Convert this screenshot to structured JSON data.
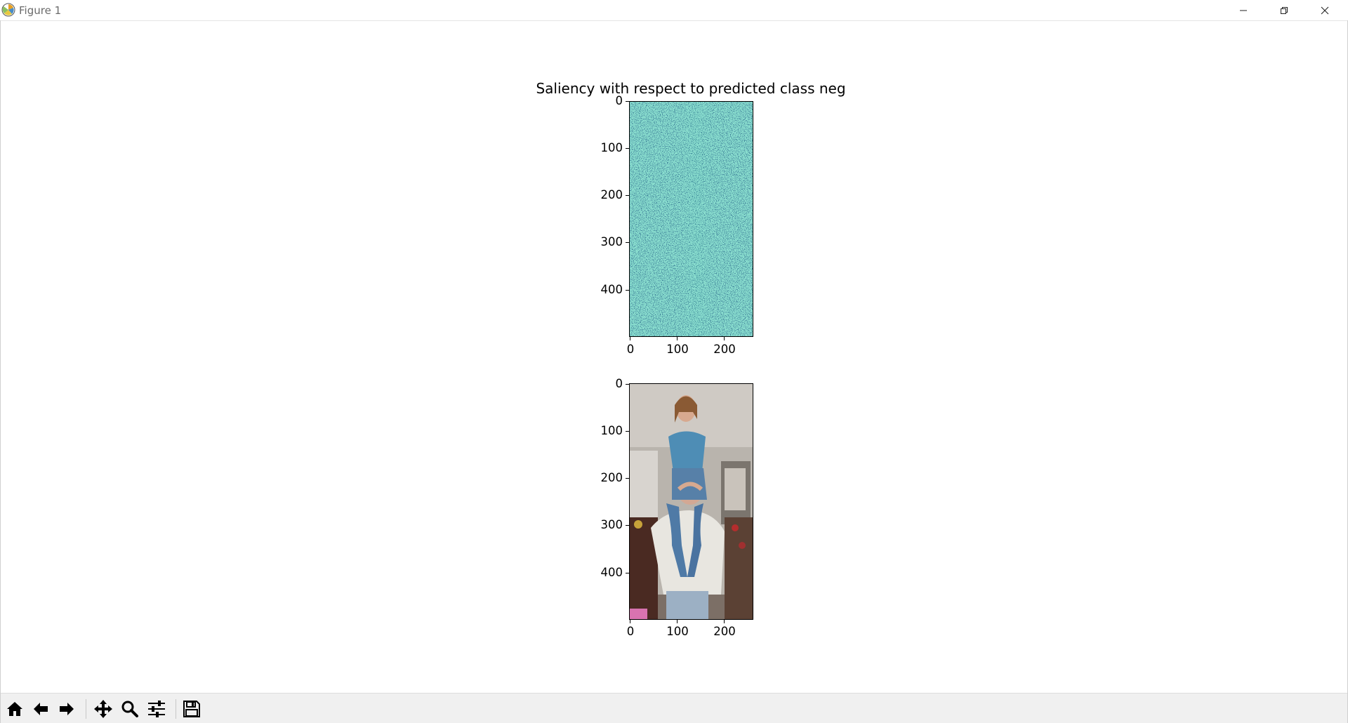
{
  "window": {
    "title": "Figure 1"
  },
  "figure": {
    "title": "Saliency with respect to predicted class neg"
  },
  "chart_data": [
    {
      "type": "image",
      "name": "saliency-map",
      "colormap": "viridis",
      "image_shape": [
        500,
        262
      ],
      "xlim": [
        0,
        262
      ],
      "ylim": [
        500,
        0
      ],
      "x_ticks": [
        "0",
        "100",
        "200"
      ],
      "y_ticks": [
        "0",
        "100",
        "200",
        "300",
        "400"
      ],
      "dominant_color": "#2f6e8e"
    },
    {
      "type": "image",
      "name": "input-photo",
      "image_shape": [
        500,
        262
      ],
      "xlim": [
        0,
        262
      ],
      "ylim": [
        500,
        0
      ],
      "x_ticks": [
        "0",
        "100",
        "200"
      ],
      "y_ticks": [
        "0",
        "100",
        "200",
        "300",
        "400"
      ]
    }
  ],
  "toolbar": {
    "buttons": [
      "home-icon",
      "back-icon",
      "forward-icon",
      "pan-icon",
      "zoom-icon",
      "configure-subplots-icon",
      "save-icon"
    ]
  },
  "colors": {
    "saliency_base": "#2f6e8e",
    "saliency_bright": "#3bb3a0"
  }
}
